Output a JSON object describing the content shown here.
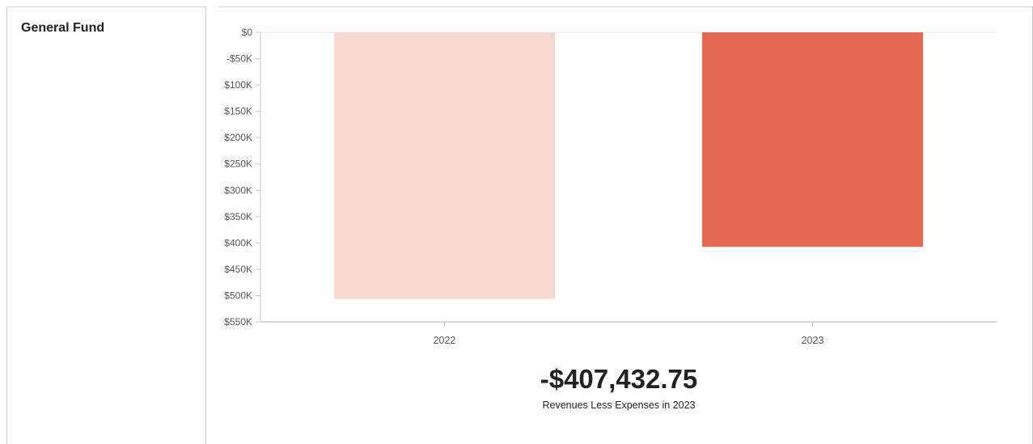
{
  "fund": {
    "title": "General Fund"
  },
  "summary": {
    "value": "-$407,432.75",
    "caption": "Revenues Less Expenses in 2023"
  },
  "colors": {
    "bar_2022": "#f6d9d2",
    "bar_2023": "#e16a50",
    "axis": "#c8c8c8",
    "grid": "#e0e0e0",
    "tick_text": "#555555"
  },
  "chart_data": {
    "type": "bar",
    "title": "",
    "xlabel": "",
    "ylabel": "",
    "categories": [
      "2022",
      "2023"
    ],
    "values": [
      -506500,
      -407432.75
    ],
    "ylim": [
      -550000,
      0
    ],
    "yticks": [
      {
        "value": 0,
        "label": "$0"
      },
      {
        "value": -50000,
        "label": "-$50K"
      },
      {
        "value": -100000,
        "label": "$100K"
      },
      {
        "value": -150000,
        "label": "$150K"
      },
      {
        "value": -200000,
        "label": "$200K"
      },
      {
        "value": -250000,
        "label": "$250K"
      },
      {
        "value": -300000,
        "label": "$300K"
      },
      {
        "value": -350000,
        "label": "$350K"
      },
      {
        "value": -400000,
        "label": "$400K"
      },
      {
        "value": -450000,
        "label": "$450K"
      },
      {
        "value": -500000,
        "label": "$500K"
      },
      {
        "value": -550000,
        "label": "$550K"
      }
    ],
    "grid": true,
    "legend": "none"
  }
}
